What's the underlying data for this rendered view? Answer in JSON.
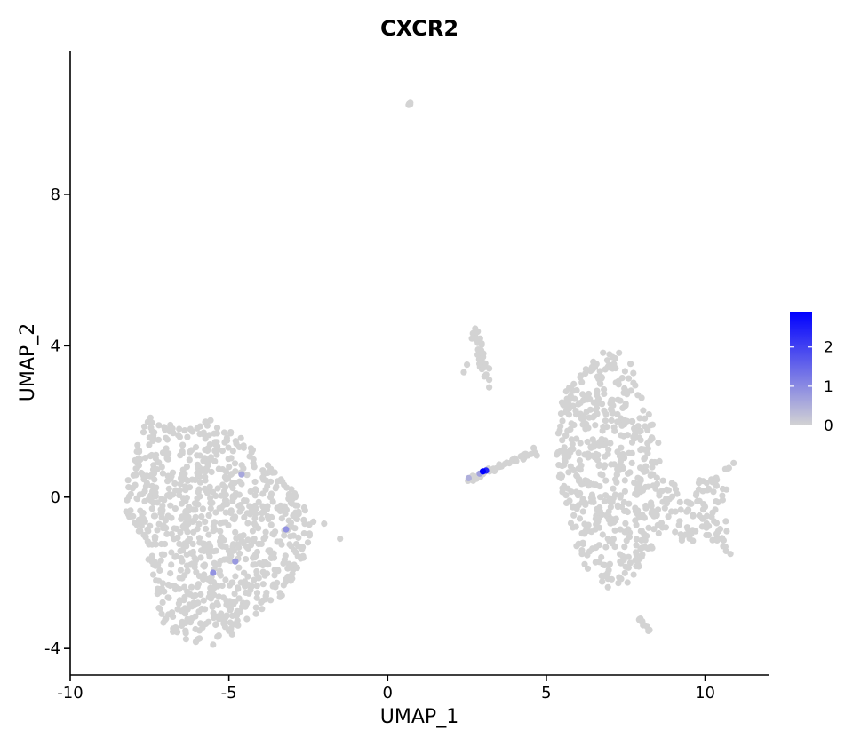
{
  "chart_data": {
    "type": "scatter",
    "title": "CXCR2",
    "xlabel": "UMAP_1",
    "ylabel": "UMAP_2",
    "xlim": [
      -10,
      12
    ],
    "ylim": [
      -4.7,
      11.8
    ],
    "xticks": [
      -10,
      -5,
      0,
      5,
      10
    ],
    "yticks": [
      -4,
      0,
      4,
      8
    ],
    "grid": false,
    "legend": {
      "position": "right",
      "type": "colorbar",
      "ticks": [
        0,
        1,
        2
      ],
      "tick_labels": [
        "0",
        "1",
        "2"
      ],
      "min": 0,
      "max": 2.9,
      "low_color": "#d3d3d3",
      "high_color": "#0000ff"
    },
    "clusters": [
      {
        "shape": "poly",
        "n": 900,
        "seed": 11,
        "polygon": [
          [
            -8.2,
            1.0
          ],
          [
            -7.5,
            2.2
          ],
          [
            -6.5,
            1.8
          ],
          [
            -5.5,
            2.1
          ],
          [
            -4.5,
            1.5
          ],
          [
            -3.0,
            0.2
          ],
          [
            -2.2,
            -0.8
          ],
          [
            -2.7,
            -1.7
          ],
          [
            -3.3,
            -2.6
          ],
          [
            -4.2,
            -3.2
          ],
          [
            -5.0,
            -3.7
          ],
          [
            -5.6,
            -3.9
          ],
          [
            -6.4,
            -3.8
          ],
          [
            -7.0,
            -3.5
          ],
          [
            -7.3,
            -2.7
          ],
          [
            -7.6,
            -1.5
          ],
          [
            -8.3,
            -0.3
          ]
        ],
        "extras": [
          [
            -1.5,
            -1.1
          ],
          [
            -2.0,
            -0.7
          ],
          [
            -5.5,
            -3.9
          ]
        ]
      },
      {
        "shape": "poly",
        "n": 640,
        "seed": 23,
        "polygon": [
          [
            5.5,
            2.7
          ],
          [
            6.2,
            3.4
          ],
          [
            7.0,
            4.0
          ],
          [
            7.6,
            3.8
          ],
          [
            8.1,
            2.5
          ],
          [
            8.5,
            1.8
          ],
          [
            8.6,
            0.5
          ],
          [
            9.3,
            0.4
          ],
          [
            10.2,
            0.6
          ],
          [
            10.9,
            1.0
          ],
          [
            10.6,
            -0.3
          ],
          [
            10.8,
            -1.5
          ],
          [
            10.0,
            -1.1
          ],
          [
            9.3,
            -1.2
          ],
          [
            8.6,
            -0.9
          ],
          [
            8.2,
            -1.6
          ],
          [
            7.7,
            -2.2
          ],
          [
            7.1,
            -2.5
          ],
          [
            6.4,
            -2.1
          ],
          [
            5.9,
            -1.3
          ],
          [
            5.5,
            -0.2
          ],
          [
            5.3,
            1.3
          ]
        ],
        "extras": [
          [
            10.9,
            0.9
          ],
          [
            10.8,
            -1.5
          ],
          [
            4.7,
            1.1
          ],
          [
            4.6,
            1.3
          ]
        ]
      },
      {
        "shape": "line",
        "n": 45,
        "seed": 31,
        "from": [
          2.5,
          0.45
        ],
        "to": [
          4.7,
          1.2
        ],
        "jitter": 0.07
      },
      {
        "shape": "line",
        "n": 30,
        "seed": 41,
        "from": [
          2.7,
          4.5
        ],
        "to": [
          3.1,
          3.2
        ],
        "jitter": 0.14,
        "extras": [
          [
            2.4,
            3.3
          ],
          [
            2.5,
            3.5
          ],
          [
            3.2,
            3.1
          ],
          [
            3.2,
            3.4
          ],
          [
            3.2,
            2.9
          ]
        ]
      },
      {
        "shape": "line",
        "n": 14,
        "seed": 53,
        "from": [
          7.9,
          -3.2
        ],
        "to": [
          8.25,
          -3.55
        ],
        "jitter": 0.03
      },
      {
        "shape": "line",
        "n": 8,
        "seed": 61,
        "from": [
          0.55,
          10.3
        ],
        "to": [
          0.78,
          10.45
        ],
        "jitter": 0.02
      }
    ],
    "expressing_points": [
      {
        "x": -4.6,
        "y": 0.6,
        "value": 0.6
      },
      {
        "x": -5.5,
        "y": -2.0,
        "value": 0.9
      },
      {
        "x": -4.8,
        "y": -1.7,
        "value": 0.8
      },
      {
        "x": -3.2,
        "y": -0.85,
        "value": 0.9
      },
      {
        "x": 2.55,
        "y": 0.5,
        "value": 0.5
      },
      {
        "x": 2.9,
        "y": 0.62,
        "value": 0.7
      },
      {
        "x": 3.0,
        "y": 0.68,
        "value": 2.9
      },
      {
        "x": 3.1,
        "y": 0.7,
        "value": 2.4
      }
    ]
  }
}
